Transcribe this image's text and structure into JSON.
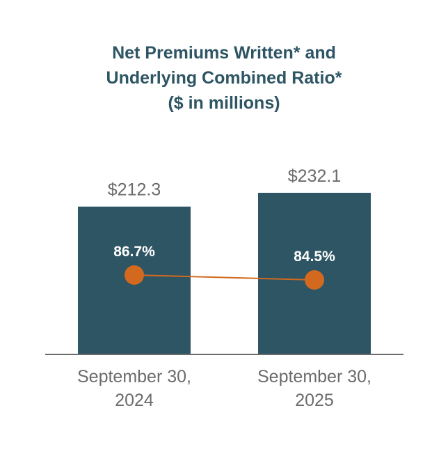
{
  "chart_data": {
    "type": "bar",
    "title_lines": [
      "Net Premiums Written* and",
      "Underlying Combined Ratio*",
      "($ in millions)"
    ],
    "categories": [
      [
        "September 30,",
        "2024"
      ],
      [
        "September 30,",
        "2025"
      ]
    ],
    "series": [
      {
        "name": "Net Premiums Written",
        "type": "bar",
        "values": [
          212.3,
          232.1
        ],
        "labels": [
          "$212.3",
          "$232.1"
        ],
        "color": "#2e5564"
      },
      {
        "name": "Underlying Combined Ratio",
        "type": "line",
        "values": [
          86.7,
          84.5
        ],
        "labels": [
          "86.7%",
          "84.5%"
        ],
        "color": "#d2691e"
      }
    ],
    "axis_color": "#6b6b6b",
    "label_color": "#6b6b6b",
    "ylim": [
      0,
      240
    ]
  }
}
